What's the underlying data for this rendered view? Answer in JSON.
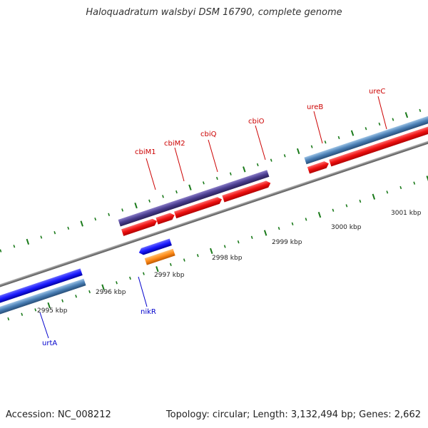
{
  "title": "Haloquadratum walsbyi DSM 16790, complete genome",
  "footer": {
    "accession": "Accession: NC_008212",
    "summary": "Topology: circular; Length: 3,132,494 bp; Genes: 2,662"
  },
  "scale_labels": [
    "2995 kbp",
    "2996 kbp",
    "2997 kbp",
    "2998 kbp",
    "2999 kbp",
    "3000 kbp",
    "3001 kbp"
  ],
  "genes": {
    "cbiM1": "cbiM1",
    "cbiM2": "cbiM2",
    "cbiQ": "cbiQ",
    "cbiO": "cbiO",
    "ureB": "ureB",
    "ureC": "ureC",
    "nikR": "nikR",
    "urtA": "urtA"
  },
  "colors": {
    "backbone": "#888888",
    "red_gene": "#ee1111",
    "blue_gene": "#1a1aff",
    "steel_gene": "#4a7fb5",
    "purple_gene": "#4a3d8f",
    "orange_gene": "#ff8c1a",
    "tick": "#1a7a1a",
    "red_label": "#cc0000",
    "blue_label": "#0000cc"
  }
}
